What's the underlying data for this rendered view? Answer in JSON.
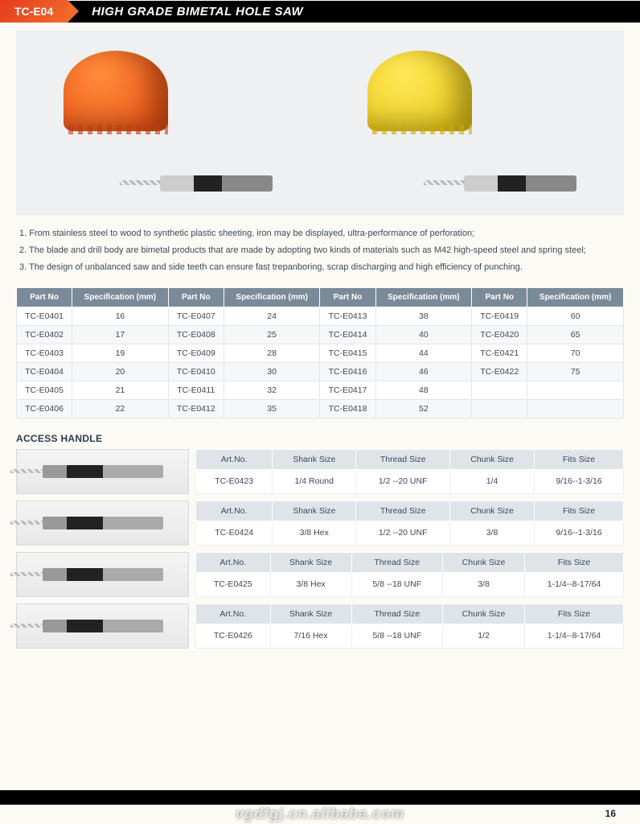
{
  "header": {
    "code": "TC-E04",
    "title": "HIGH GRADE BIMETAL HOLE SAW"
  },
  "notes": [
    "1. From stainless steel to wood to synthetic plastic sheeting, iron may be displayed, ultra-performance of perforation;",
    "2. The blade and drill body are bimetal products that are made by adopting two kinds of materials such as M42 high-speed steel and spring steel;",
    "3. The design of unbalanced saw and side teeth can ensure fast trepanboring, scrap discharging and high efficiency of punching."
  ],
  "spec_table": {
    "columns": [
      "Part No",
      "Specification (mm)",
      "Part No",
      "Specification (mm)",
      "Part No",
      "Specification (mm)",
      "Part No",
      "Specification (mm)"
    ],
    "rows": [
      [
        "TC-E0401",
        "16",
        "TC-E0407",
        "24",
        "TC-E0413",
        "38",
        "TC-E0419",
        "60"
      ],
      [
        "TC-E0402",
        "17",
        "TC-E0408",
        "25",
        "TC-E0414",
        "40",
        "TC-E0420",
        "65"
      ],
      [
        "TC-E0403",
        "19",
        "TC-E0409",
        "28",
        "TC-E0415",
        "44",
        "TC-E0421",
        "70"
      ],
      [
        "TC-E0404",
        "20",
        "TC-E0410",
        "30",
        "TC-E0416",
        "46",
        "TC-E0422",
        "75"
      ],
      [
        "TC-E0405",
        "21",
        "TC-E0411",
        "32",
        "TC-E0417",
        "48",
        "",
        ""
      ],
      [
        "TC-E0406",
        "22",
        "TC-E0412",
        "35",
        "TC-E0418",
        "52",
        "",
        ""
      ]
    ]
  },
  "access_handle_title": "ACCESS HANDLE",
  "handle_columns": [
    "Art.No.",
    "Shank Size",
    "Thread Size",
    "Chunk Size",
    "Fits Size"
  ],
  "handles": [
    {
      "art": "TC-E0423",
      "shank": "1/4 Round",
      "thread": "1/2 --20 UNF",
      "chunk": "1/4",
      "fits": "9/16--1-3/16"
    },
    {
      "art": "TC-E0424",
      "shank": "3/8 Hex",
      "thread": "1/2 --20 UNF",
      "chunk": "3/8",
      "fits": "9/16--1-3/16"
    },
    {
      "art": "TC-E0425",
      "shank": "3/8 Hex",
      "thread": "5/8 --18 UNF",
      "chunk": "3/8",
      "fits": "1-1/4--8-17/64"
    },
    {
      "art": "TC-E0426",
      "shank": "7/16 Hex",
      "thread": "5/8 --18 UNF",
      "chunk": "1/2",
      "fits": "1-1/4--8-17/64"
    }
  ],
  "page_number": "16",
  "watermark": "vgdfgj.cn.alibaba.com",
  "colors": {
    "header_accent": "#e63c1e",
    "header_bg": "#000000",
    "table_head": "#7b8a99",
    "sub_head": "#dfe4e8",
    "page_bg": "#fcfaf5"
  }
}
